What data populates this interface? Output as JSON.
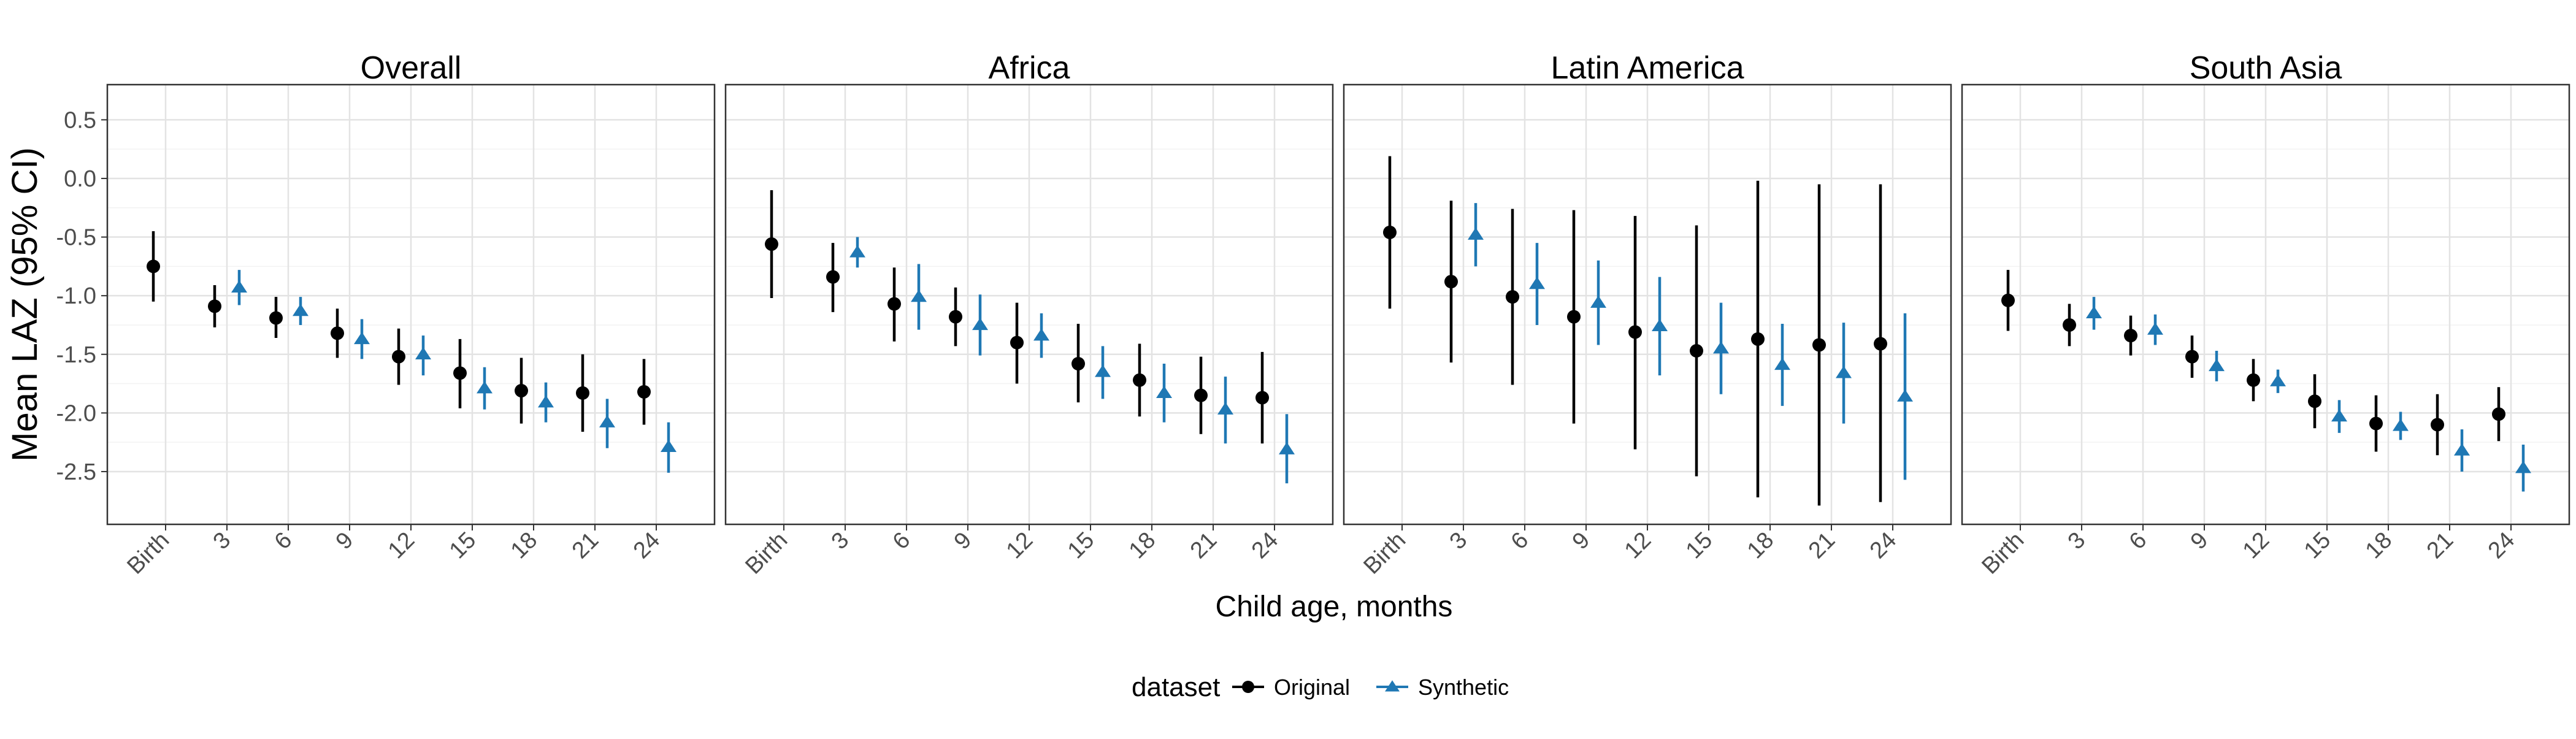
{
  "chart_data": {
    "type": "scatter",
    "subtype": "point-range faceted",
    "xlabel": "Child age, months",
    "ylabel": "Mean LAZ (95% CI)",
    "categories": [
      "Birth",
      "3",
      "6",
      "9",
      "12",
      "15",
      "18",
      "21",
      "24"
    ],
    "ylim": [
      -2.95,
      0.8
    ],
    "yticks": [
      0.5,
      0.0,
      -0.5,
      -1.0,
      -1.5,
      -2.0,
      -2.5
    ],
    "ytick_labels": [
      "0.5",
      "0.0",
      "-0.5",
      "-1.0",
      "-1.5",
      "-2.0",
      "-2.5"
    ],
    "grid": true,
    "legend": {
      "title": "dataset",
      "placement": "bottom",
      "entries": [
        {
          "name": "Original",
          "color": "#000000",
          "shape": "circle"
        },
        {
          "name": "Synthetic",
          "color": "#1f78b4",
          "shape": "triangle"
        }
      ]
    },
    "facets": [
      {
        "title": "Overall",
        "series": [
          {
            "name": "Original",
            "y": [
              -0.75,
              -1.09,
              -1.19,
              -1.32,
              -1.52,
              -1.66,
              -1.81,
              -1.83,
              -1.82
            ],
            "lower": [
              -1.05,
              -1.27,
              -1.36,
              -1.53,
              -1.76,
              -1.96,
              -2.09,
              -2.16,
              -2.1
            ],
            "upper": [
              -0.45,
              -0.91,
              -1.01,
              -1.11,
              -1.28,
              -1.37,
              -1.53,
              -1.5,
              -1.54
            ]
          },
          {
            "name": "Synthetic",
            "y": [
              null,
              -0.93,
              -1.13,
              -1.37,
              -1.5,
              -1.79,
              -1.91,
              -2.08,
              -2.29
            ],
            "lower": [
              null,
              -1.08,
              -1.25,
              -1.54,
              -1.68,
              -1.97,
              -2.08,
              -2.3,
              -2.51
            ],
            "upper": [
              null,
              -0.78,
              -1.01,
              -1.2,
              -1.34,
              -1.61,
              -1.74,
              -1.88,
              -2.08
            ]
          }
        ]
      },
      {
        "title": "Africa",
        "series": [
          {
            "name": "Original",
            "y": [
              -0.56,
              -0.84,
              -1.07,
              -1.18,
              -1.4,
              -1.58,
              -1.72,
              -1.85,
              -1.87
            ],
            "lower": [
              -1.02,
              -1.14,
              -1.39,
              -1.43,
              -1.75,
              -1.91,
              -2.03,
              -2.18,
              -2.26
            ],
            "upper": [
              -0.1,
              -0.55,
              -0.76,
              -0.93,
              -1.06,
              -1.24,
              -1.41,
              -1.52,
              -1.48
            ]
          },
          {
            "name": "Synthetic",
            "y": [
              null,
              -0.63,
              -1.01,
              -1.25,
              -1.34,
              -1.65,
              -1.83,
              -1.97,
              -2.31
            ],
            "lower": [
              null,
              -0.76,
              -1.29,
              -1.51,
              -1.53,
              -1.88,
              -2.08,
              -2.26,
              -2.6
            ],
            "upper": [
              null,
              -0.5,
              -0.73,
              -0.99,
              -1.15,
              -1.43,
              -1.58,
              -1.69,
              -2.01
            ]
          }
        ]
      },
      {
        "title": "Latin America",
        "series": [
          {
            "name": "Original",
            "y": [
              -0.46,
              -0.88,
              -1.01,
              -1.18,
              -1.31,
              -1.47,
              -1.37,
              -1.42,
              -1.41
            ],
            "lower": [
              -1.11,
              -1.57,
              -1.76,
              -2.09,
              -2.31,
              -2.54,
              -2.72,
              -2.79,
              -2.76
            ],
            "upper": [
              0.19,
              -0.19,
              -0.26,
              -0.27,
              -0.32,
              -0.4,
              -0.02,
              -0.05,
              -0.05
            ]
          },
          {
            "name": "Synthetic",
            "y": [
              null,
              -0.48,
              -0.9,
              -1.06,
              -1.26,
              -1.45,
              -1.59,
              -1.66,
              -1.86
            ],
            "lower": [
              null,
              -0.75,
              -1.25,
              -1.42,
              -1.68,
              -1.84,
              -1.94,
              -2.09,
              -2.57
            ],
            "upper": [
              null,
              -0.21,
              -0.55,
              -0.7,
              -0.84,
              -1.06,
              -1.24,
              -1.23,
              -1.15
            ]
          }
        ]
      },
      {
        "title": "South Asia",
        "series": [
          {
            "name": "Original",
            "y": [
              -1.04,
              -1.25,
              -1.34,
              -1.52,
              -1.72,
              -1.9,
              -2.09,
              -2.1,
              -2.01
            ],
            "lower": [
              -1.3,
              -1.43,
              -1.51,
              -1.7,
              -1.9,
              -2.13,
              -2.33,
              -2.36,
              -2.24
            ],
            "upper": [
              -0.78,
              -1.07,
              -1.17,
              -1.34,
              -1.54,
              -1.67,
              -1.85,
              -1.84,
              -1.78
            ]
          },
          {
            "name": "Synthetic",
            "y": [
              null,
              -1.15,
              -1.29,
              -1.6,
              -1.73,
              -2.03,
              -2.11,
              -2.32,
              -2.47
            ],
            "lower": [
              null,
              -1.29,
              -1.42,
              -1.73,
              -1.83,
              -2.17,
              -2.23,
              -2.5,
              -2.67
            ],
            "upper": [
              null,
              -1.01,
              -1.16,
              -1.47,
              -1.63,
              -1.89,
              -1.99,
              -2.14,
              -2.27
            ]
          }
        ]
      }
    ]
  }
}
